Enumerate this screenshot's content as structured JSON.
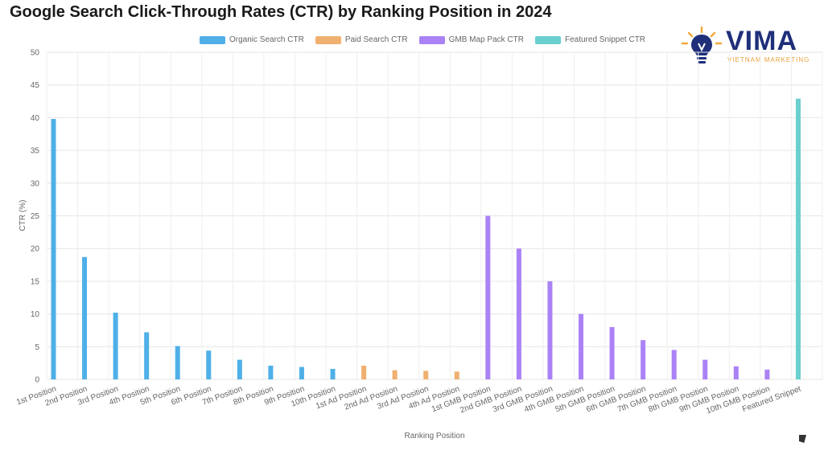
{
  "title": "Google Search Click-Through Rates (CTR) by Ranking Position in 2024",
  "logo": {
    "word": "VIMA",
    "tagline": "VIETNAM MARKETING",
    "icon": "lightbulb-icon"
  },
  "legend": [
    {
      "label": "Organic Search CTR",
      "color": "#4fb0e8"
    },
    {
      "label": "Paid Search CTR",
      "color": "#f0b070"
    },
    {
      "label": "GMB Map Pack CTR",
      "color": "#ab82f5"
    },
    {
      "label": "Featured Snippet CTR",
      "color": "#6acfcf"
    }
  ],
  "chart_data": {
    "type": "bar",
    "title": "Google Search Click-Through Rates (CTR) by Ranking Position in 2024",
    "xlabel": "Ranking Position",
    "ylabel": "CTR (%)",
    "ylim": [
      0,
      50
    ],
    "yticks": [
      0,
      5,
      10,
      15,
      20,
      25,
      30,
      35,
      40,
      45,
      50
    ],
    "categories": [
      "1st Position",
      "2nd Position",
      "3rd Position",
      "4th Position",
      "5th Position",
      "6th Position",
      "7th Position",
      "8th Position",
      "9th Position",
      "10th Position",
      "1st Ad Position",
      "2nd Ad Position",
      "3rd Ad Position",
      "4th Ad Position",
      "1st GMB Position",
      "2nd GMB Position",
      "3rd GMB Position",
      "4th GMB Position",
      "5th GMB Position",
      "6th GMB Position",
      "7th GMB Position",
      "8th GMB Position",
      "9th GMB Position",
      "10th GMB Position",
      "Featured Snippet"
    ],
    "series": [
      {
        "name": "Organic Search CTR",
        "color": "#4fb0e8",
        "values": [
          39.8,
          18.7,
          10.2,
          7.2,
          5.1,
          4.4,
          3.0,
          2.1,
          1.9,
          1.6,
          null,
          null,
          null,
          null,
          null,
          null,
          null,
          null,
          null,
          null,
          null,
          null,
          null,
          null,
          null
        ]
      },
      {
        "name": "Paid Search CTR",
        "color": "#f0b070",
        "values": [
          null,
          null,
          null,
          null,
          null,
          null,
          null,
          null,
          null,
          null,
          2.1,
          1.4,
          1.3,
          1.2,
          null,
          null,
          null,
          null,
          null,
          null,
          null,
          null,
          null,
          null,
          null
        ]
      },
      {
        "name": "GMB Map Pack CTR",
        "color": "#ab82f5",
        "values": [
          null,
          null,
          null,
          null,
          null,
          null,
          null,
          null,
          null,
          null,
          null,
          null,
          null,
          null,
          25,
          20,
          15,
          10,
          8,
          6,
          4.5,
          3,
          2,
          1.5,
          null
        ]
      },
      {
        "name": "Featured Snippet CTR",
        "color": "#6acfcf",
        "values": [
          null,
          null,
          null,
          null,
          null,
          null,
          null,
          null,
          null,
          null,
          null,
          null,
          null,
          null,
          null,
          null,
          null,
          null,
          null,
          null,
          null,
          null,
          null,
          null,
          42.9
        ]
      }
    ]
  }
}
